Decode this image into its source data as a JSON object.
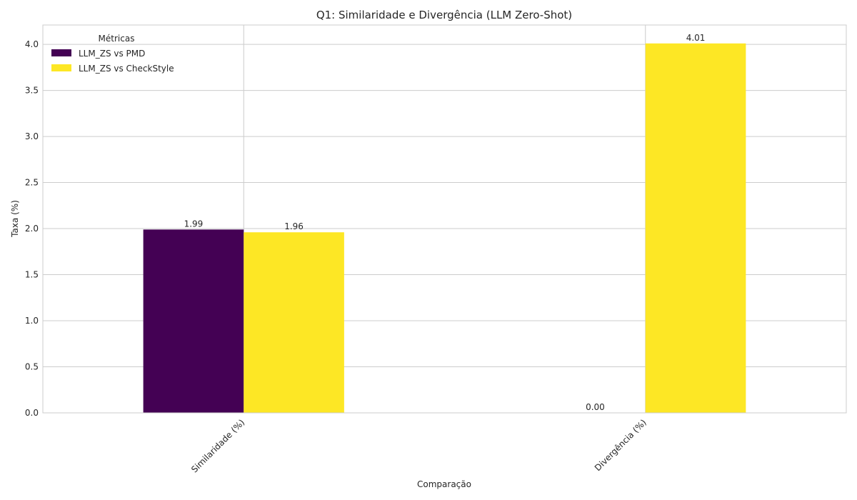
{
  "chart_data": {
    "type": "bar",
    "title": "Q1: Similaridade e Divergência (LLM Zero-Shot)",
    "xlabel": "Comparação",
    "ylabel": "Taxa (%)",
    "categories": [
      "Similaridade (%)",
      "Divergência (%)"
    ],
    "series": [
      {
        "name": "LLM_ZS vs PMD",
        "values": [
          1.99,
          0.0
        ],
        "color": "#440154"
      },
      {
        "name": "LLM_ZS vs CheckStyle",
        "values": [
          1.96,
          4.01
        ],
        "color": "#fde725"
      }
    ],
    "data_labels": [
      [
        "1.99",
        "0.00"
      ],
      [
        "1.96",
        "4.01"
      ]
    ],
    "ylim": [
      0,
      4.21
    ],
    "yticks": [
      "0.0",
      "0.5",
      "1.0",
      "1.5",
      "2.0",
      "2.5",
      "3.0",
      "3.5",
      "4.0"
    ],
    "grid": true,
    "legend": {
      "title": "Métricas",
      "position": "upper-left"
    }
  }
}
